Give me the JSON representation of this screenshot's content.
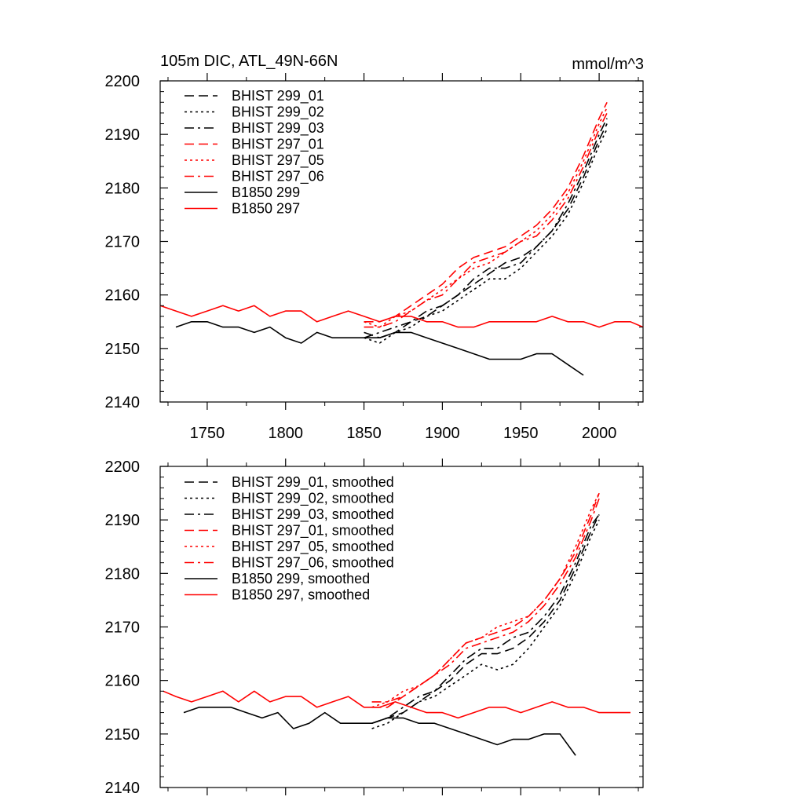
{
  "colors": {
    "black": "#000000",
    "red": "#ff0000"
  },
  "chart_data": [
    {
      "type": "line",
      "title": "105m DIC, ATL_49N-66N",
      "units": "mmol/m^3",
      "xlim": [
        1720,
        2028
      ],
      "ylim": [
        2140,
        2200
      ],
      "yticks": [
        2140,
        2150,
        2160,
        2170,
        2180,
        2190,
        2200
      ],
      "xticks": [
        1750,
        1800,
        1850,
        1900,
        1950,
        2000
      ],
      "show_xtick_labels": true,
      "legend_position": "top-left",
      "series": [
        {
          "name": "BHIST 299_01",
          "color": "#000000",
          "dash": "dashed",
          "x": [
            1850,
            1860,
            1870,
            1880,
            1890,
            1900,
            1910,
            1920,
            1930,
            1940,
            1950,
            1960,
            1970,
            1980,
            1990,
            2000,
            2005
          ],
          "y": [
            2153,
            2152,
            2153,
            2155,
            2156,
            2158,
            2160,
            2162,
            2164,
            2166,
            2167,
            2169,
            2172,
            2176,
            2182,
            2189,
            2192
          ]
        },
        {
          "name": "BHIST 299_02",
          "color": "#000000",
          "dash": "dotted",
          "x": [
            1850,
            1860,
            1870,
            1880,
            1890,
            1900,
            1910,
            1920,
            1930,
            1940,
            1950,
            1960,
            1970,
            1980,
            1990,
            2000,
            2005
          ],
          "y": [
            2152,
            2151,
            2153,
            2154,
            2156,
            2157,
            2159,
            2161,
            2163,
            2163,
            2165,
            2168,
            2171,
            2175,
            2181,
            2188,
            2191
          ]
        },
        {
          "name": "BHIST 299_03",
          "color": "#000000",
          "dash": "dashdot",
          "x": [
            1850,
            1860,
            1870,
            1880,
            1890,
            1900,
            1910,
            1920,
            1930,
            1940,
            1950,
            1960,
            1970,
            1980,
            1990,
            2000,
            2005
          ],
          "y": [
            2152,
            2153,
            2154,
            2155,
            2157,
            2158,
            2160,
            2163,
            2165,
            2165,
            2166,
            2169,
            2172,
            2177,
            2183,
            2190,
            2193
          ]
        },
        {
          "name": "BHIST 297_01",
          "color": "#ff0000",
          "dash": "dashed",
          "x": [
            1850,
            1860,
            1870,
            1880,
            1890,
            1900,
            1910,
            1920,
            1930,
            1940,
            1950,
            1960,
            1970,
            1980,
            1990,
            2000,
            2005
          ],
          "y": [
            2155,
            2155,
            2156,
            2158,
            2160,
            2162,
            2165,
            2167,
            2168,
            2169,
            2171,
            2173,
            2176,
            2180,
            2186,
            2193,
            2196
          ]
        },
        {
          "name": "BHIST 297_05",
          "color": "#ff0000",
          "dash": "dotted",
          "x": [
            1850,
            1860,
            1870,
            1880,
            1890,
            1900,
            1910,
            1920,
            1930,
            1940,
            1950,
            1960,
            1970,
            1980,
            1990,
            2000,
            2005
          ],
          "y": [
            2155,
            2154,
            2156,
            2157,
            2159,
            2161,
            2163,
            2165,
            2166,
            2168,
            2170,
            2172,
            2175,
            2179,
            2185,
            2192,
            2195
          ]
        },
        {
          "name": "BHIST 297_06",
          "color": "#ff0000",
          "dash": "dashdot",
          "x": [
            1850,
            1860,
            1870,
            1880,
            1890,
            1900,
            1910,
            1920,
            1930,
            1940,
            1950,
            1960,
            1970,
            1980,
            1990,
            2000,
            2005
          ],
          "y": [
            2154,
            2154,
            2155,
            2157,
            2159,
            2160,
            2163,
            2166,
            2167,
            2168,
            2170,
            2171,
            2174,
            2178,
            2184,
            2191,
            2194
          ]
        },
        {
          "name": "B1850 299",
          "color": "#000000",
          "dash": "solid",
          "x": [
            1730,
            1740,
            1750,
            1760,
            1770,
            1780,
            1790,
            1800,
            1810,
            1820,
            1830,
            1840,
            1850,
            1860,
            1870,
            1880,
            1890,
            1900,
            1910,
            1920,
            1930,
            1940,
            1950,
            1960,
            1970,
            1980,
            1990
          ],
          "y": [
            2154,
            2155,
            2155,
            2154,
            2154,
            2153,
            2154,
            2152,
            2151,
            2153,
            2152,
            2152,
            2152,
            2152,
            2153,
            2153,
            2152,
            2151,
            2150,
            2149,
            2148,
            2148,
            2148,
            2149,
            2149,
            2147,
            2145
          ]
        },
        {
          "name": "B1850 297",
          "color": "#ff0000",
          "dash": "solid",
          "x": [
            1720,
            1730,
            1740,
            1750,
            1760,
            1770,
            1780,
            1790,
            1800,
            1810,
            1820,
            1830,
            1840,
            1850,
            1860,
            1870,
            1880,
            1890,
            1900,
            1910,
            1920,
            1930,
            1940,
            1950,
            1960,
            1970,
            1980,
            1990,
            2000,
            2010,
            2020,
            2028
          ],
          "y": [
            2158,
            2157,
            2156,
            2157,
            2158,
            2157,
            2158,
            2156,
            2157,
            2157,
            2155,
            2156,
            2157,
            2156,
            2155,
            2156,
            2156,
            2155,
            2155,
            2154,
            2154,
            2155,
            2155,
            2155,
            2155,
            2156,
            2155,
            2155,
            2154,
            2155,
            2155,
            2154
          ]
        }
      ]
    },
    {
      "type": "line",
      "title": "",
      "xlim": [
        1720,
        2028
      ],
      "ylim": [
        2140,
        2200
      ],
      "yticks": [
        2140,
        2150,
        2160,
        2170,
        2180,
        2190,
        2200
      ],
      "xticks": [
        1750,
        1800,
        1850,
        1900,
        1950,
        2000
      ],
      "show_xtick_labels": false,
      "legend_position": "top-left",
      "series": [
        {
          "name": "BHIST 299_01, smoothed",
          "color": "#000000",
          "dash": "dashed",
          "x": [
            1855,
            1865,
            1875,
            1885,
            1895,
            1905,
            1915,
            1925,
            1935,
            1945,
            1955,
            1965,
            1975,
            1985,
            1995,
            2000
          ],
          "y": [
            2152,
            2153,
            2154,
            2156,
            2158,
            2160,
            2163,
            2165,
            2165,
            2166,
            2168,
            2171,
            2175,
            2181,
            2188,
            2191
          ]
        },
        {
          "name": "BHIST 299_02, smoothed",
          "color": "#000000",
          "dash": "dotted",
          "x": [
            1855,
            1865,
            1875,
            1885,
            1895,
            1905,
            1915,
            1925,
            1935,
            1945,
            1955,
            1965,
            1975,
            1985,
            1995,
            2000
          ],
          "y": [
            2151,
            2152,
            2154,
            2156,
            2157,
            2159,
            2161,
            2163,
            2162,
            2163,
            2166,
            2170,
            2174,
            2180,
            2187,
            2190
          ]
        },
        {
          "name": "BHIST 299_03, smoothed",
          "color": "#000000",
          "dash": "dashdot",
          "x": [
            1855,
            1865,
            1875,
            1885,
            1895,
            1905,
            1915,
            1925,
            1935,
            1945,
            1955,
            1965,
            1975,
            1985,
            1995,
            2000
          ],
          "y": [
            2152,
            2153,
            2155,
            2157,
            2158,
            2161,
            2164,
            2166,
            2166,
            2168,
            2169,
            2172,
            2176,
            2182,
            2189,
            2191
          ]
        },
        {
          "name": "BHIST 297_01, smoothed",
          "color": "#ff0000",
          "dash": "dashed",
          "x": [
            1855,
            1865,
            1875,
            1885,
            1895,
            1905,
            1915,
            1925,
            1935,
            1945,
            1955,
            1965,
            1975,
            1985,
            1995,
            2000
          ],
          "y": [
            2155,
            2155,
            2157,
            2159,
            2161,
            2164,
            2167,
            2168,
            2169,
            2170,
            2172,
            2175,
            2179,
            2184,
            2191,
            2195
          ]
        },
        {
          "name": "BHIST 297_05, smoothed",
          "color": "#ff0000",
          "dash": "dotted",
          "x": [
            1855,
            1865,
            1875,
            1885,
            1895,
            1905,
            1915,
            1925,
            1935,
            1945,
            1955,
            1965,
            1975,
            1985,
            1995,
            2000
          ],
          "y": [
            2155,
            2156,
            2158,
            2159,
            2161,
            2164,
            2167,
            2168,
            2170,
            2171,
            2172,
            2175,
            2179,
            2185,
            2192,
            2195
          ]
        },
        {
          "name": "BHIST 297_06, smoothed",
          "color": "#ff0000",
          "dash": "dashdot",
          "x": [
            1855,
            1865,
            1875,
            1885,
            1895,
            1905,
            1915,
            1925,
            1935,
            1945,
            1955,
            1965,
            1975,
            1985,
            1995,
            2000
          ],
          "y": [
            2156,
            2156,
            2157,
            2159,
            2161,
            2163,
            2166,
            2167,
            2168,
            2169,
            2171,
            2174,
            2178,
            2183,
            2190,
            2194
          ]
        },
        {
          "name": "B1850 299, smoothed",
          "color": "#000000",
          "dash": "solid",
          "x": [
            1735,
            1745,
            1755,
            1765,
            1775,
            1785,
            1795,
            1805,
            1815,
            1825,
            1835,
            1845,
            1855,
            1865,
            1875,
            1885,
            1895,
            1905,
            1915,
            1925,
            1935,
            1945,
            1955,
            1965,
            1975,
            1985
          ],
          "y": [
            2154,
            2155,
            2155,
            2155,
            2154,
            2153,
            2154,
            2151,
            2152,
            2154,
            2152,
            2152,
            2152,
            2153,
            2153,
            2152,
            2152,
            2151,
            2150,
            2149,
            2148,
            2149,
            2149,
            2150,
            2150,
            2146
          ]
        },
        {
          "name": "B1850 297, smoothed",
          "color": "#ff0000",
          "dash": "solid",
          "x": [
            1722,
            1730,
            1740,
            1750,
            1760,
            1770,
            1780,
            1790,
            1800,
            1810,
            1820,
            1830,
            1840,
            1850,
            1860,
            1870,
            1880,
            1890,
            1900,
            1910,
            1920,
            1930,
            1940,
            1950,
            1960,
            1970,
            1980,
            1990,
            2000,
            2010,
            2020
          ],
          "y": [
            2158,
            2157,
            2156,
            2157,
            2158,
            2156,
            2158,
            2156,
            2157,
            2157,
            2155,
            2156,
            2157,
            2155,
            2155,
            2156,
            2155,
            2154,
            2154,
            2153,
            2154,
            2155,
            2155,
            2154,
            2155,
            2156,
            2155,
            2155,
            2154,
            2154,
            2154
          ]
        }
      ]
    }
  ]
}
